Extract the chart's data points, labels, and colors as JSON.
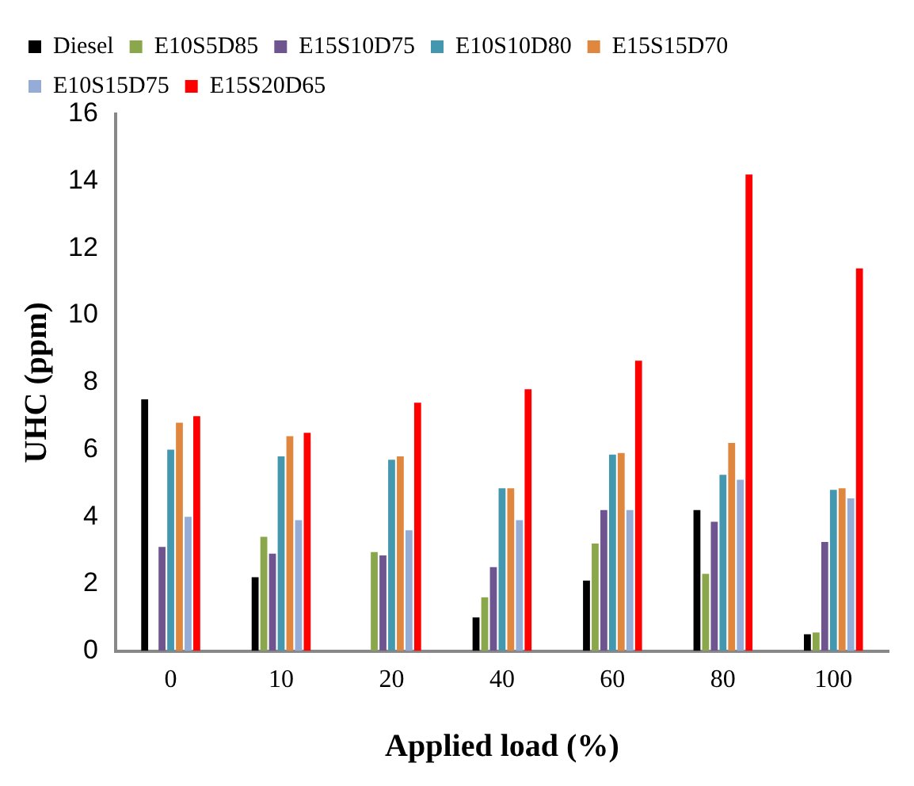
{
  "chart_data": {
    "type": "bar",
    "xlabel": "Applied load (%)",
    "ylabel": "UHC (ppm)",
    "categories": [
      "0",
      "10",
      "20",
      "40",
      "60",
      "80",
      "100"
    ],
    "series": [
      {
        "name": "Diesel",
        "color": "#000000",
        "values": [
          7.5,
          2.2,
          0,
          1.0,
          2.1,
          4.2,
          0.5
        ]
      },
      {
        "name": "E10S5D85",
        "color": "#8aa84b",
        "values": [
          0,
          3.4,
          2.95,
          1.6,
          3.2,
          2.3,
          0.55
        ]
      },
      {
        "name": "E15S10D75",
        "color": "#6e558f",
        "values": [
          3.1,
          2.9,
          2.85,
          2.5,
          4.2,
          3.85,
          3.25
        ]
      },
      {
        "name": "E10S10D80",
        "color": "#4397ae",
        "values": [
          6.0,
          5.8,
          5.7,
          4.85,
          5.85,
          5.25,
          4.8
        ]
      },
      {
        "name": "E15S15D70",
        "color": "#e0873f",
        "values": [
          6.8,
          6.4,
          5.8,
          4.85,
          5.9,
          6.2,
          4.85
        ]
      },
      {
        "name": "E10S15D75",
        "color": "#94acd6",
        "values": [
          4.0,
          3.9,
          3.6,
          3.9,
          4.2,
          5.1,
          4.55
        ]
      },
      {
        "name": "E15S20D65",
        "color": "#ff0000",
        "values": [
          7.0,
          6.5,
          7.4,
          7.8,
          8.65,
          14.2,
          11.4
        ]
      }
    ],
    "ylim": [
      0,
      16
    ],
    "yticks": [
      0,
      2,
      4,
      6,
      8,
      10,
      12,
      14,
      16
    ],
    "grid": false,
    "legend": "top"
  }
}
